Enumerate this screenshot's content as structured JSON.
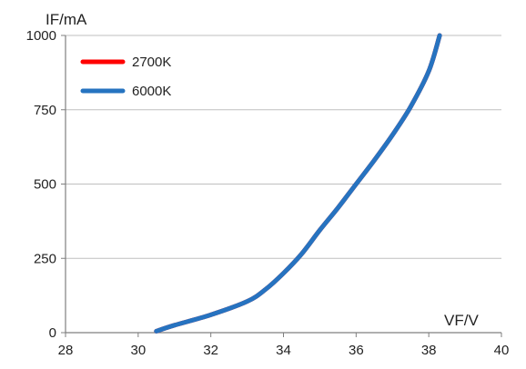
{
  "chart_data": {
    "type": "line",
    "title": "",
    "xlabel": "VF/V",
    "ylabel": "IF/mA",
    "xlim": [
      28,
      40
    ],
    "ylim": [
      0,
      1000
    ],
    "xticks": [
      28,
      30,
      32,
      34,
      36,
      38,
      40
    ],
    "yticks": [
      0,
      250,
      500,
      750,
      1000
    ],
    "xtick_labels": [
      "28",
      "30",
      "32",
      "34",
      "36",
      "38",
      "40"
    ],
    "ytick_labels": [
      "0",
      "250",
      "500",
      "750",
      "1000"
    ],
    "grid": "horizontal",
    "legend": "top-left",
    "series": [
      {
        "name": "2700K",
        "color": "#ff0000",
        "x": [
          30.5,
          31.0,
          32.0,
          33.0,
          33.5,
          34.0,
          34.5,
          35.0,
          35.5,
          36.0,
          36.5,
          37.0,
          37.5,
          38.0,
          38.3
        ],
        "y": [
          5,
          25,
          60,
          105,
          145,
          200,
          265,
          345,
          420,
          500,
          580,
          665,
          760,
          880,
          1000
        ]
      },
      {
        "name": "6000K",
        "color": "#2673c0",
        "x": [
          30.5,
          31.0,
          32.0,
          33.0,
          33.5,
          34.0,
          34.5,
          35.0,
          35.5,
          36.0,
          36.5,
          37.0,
          37.5,
          38.0,
          38.3
        ],
        "y": [
          5,
          25,
          60,
          105,
          145,
          200,
          265,
          345,
          420,
          500,
          580,
          665,
          760,
          880,
          1000
        ]
      }
    ]
  }
}
